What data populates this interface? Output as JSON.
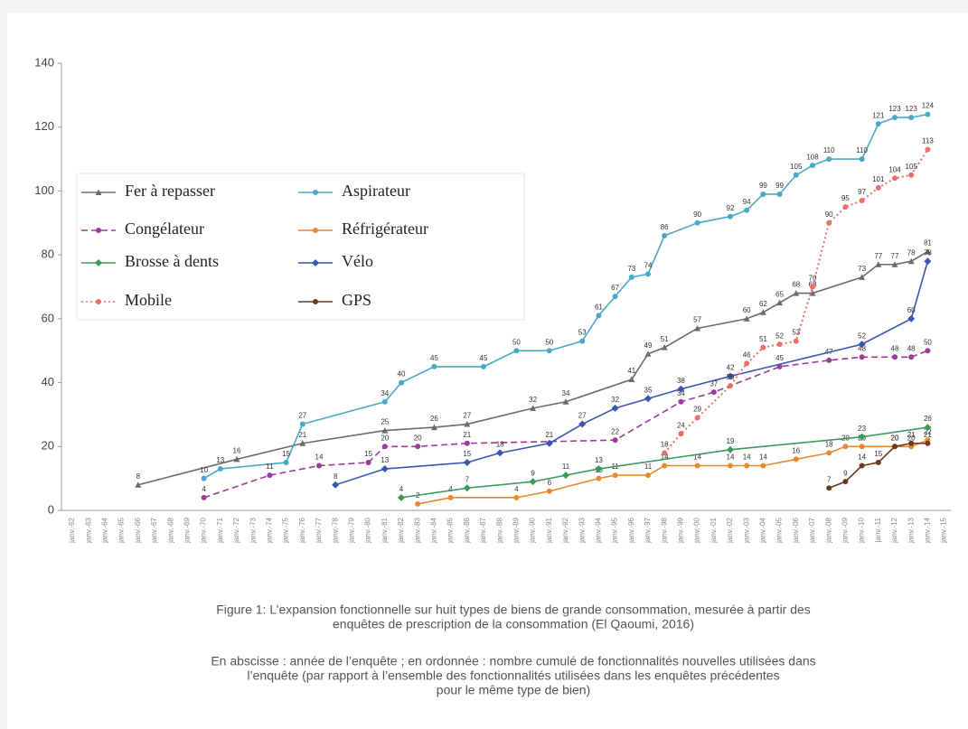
{
  "chart_data": {
    "type": "line",
    "categories": [
      "janv.-62",
      "janv.-63",
      "janv.-64",
      "janv.-65",
      "janv.-66",
      "janv.-67",
      "janv.-68",
      "janv.-69",
      "janv.-70",
      "janv.-71",
      "janv.-72",
      "janv.-73",
      "janv.-74",
      "janv.-75",
      "janv.-76",
      "janv.-77",
      "janv.-78",
      "janv.-79",
      "janv.-80",
      "janv.-81",
      "janv.-82",
      "janv.-83",
      "janv.-84",
      "janv.-85",
      "janv.-86",
      "janv.-87",
      "janv.-88",
      "janv.-89",
      "janv.-90",
      "janv.-91",
      "janv.-92",
      "janv.-93",
      "janv.-94",
      "janv.-95",
      "janv.-96",
      "janv.-97",
      "janv.-98",
      "janv.-99",
      "janv.-00",
      "janv.-01",
      "janv.-02",
      "janv.-03",
      "janv.-04",
      "janv.-05",
      "janv.-06",
      "janv.-07",
      "janv.-08",
      "janv.-09",
      "janv.-10",
      "janv.-11",
      "janv.-12",
      "janv.-13",
      "janv.-14",
      "janv.-15"
    ],
    "ylim": [
      0,
      140
    ],
    "yticks": [
      0,
      20,
      40,
      60,
      80,
      100,
      120,
      140
    ],
    "series": [
      {
        "name": "Fer à repasser",
        "color": "#6b6b6b",
        "marker": "triangle",
        "line_style": "solid",
        "x": [
          "janv.-66",
          "janv.-72",
          "janv.-76",
          "janv.-81",
          "janv.-84",
          "janv.-86",
          "janv.-90",
          "janv.-92",
          "janv.-96",
          "janv.-97",
          "janv.-98",
          "janv.-00",
          "janv.-03",
          "janv.-04",
          "janv.-05",
          "janv.-06",
          "janv.-07",
          "janv.-10",
          "janv.-11",
          "janv.-12",
          "janv.-13",
          "janv.-14"
        ],
        "values": [
          8,
          16,
          21,
          25,
          26,
          27,
          32,
          34,
          41,
          49,
          51,
          57,
          60,
          62,
          65,
          68,
          68,
          73,
          77,
          77,
          78,
          81
        ]
      },
      {
        "name": "Aspirateur",
        "color": "#4aa8c8",
        "marker": "circle",
        "line_style": "solid",
        "x": [
          "janv.-70",
          "janv.-71",
          "janv.-75",
          "janv.-76",
          "janv.-81",
          "janv.-82",
          "janv.-84",
          "janv.-87",
          "janv.-89",
          "janv.-91",
          "janv.-93",
          "janv.-94",
          "janv.-95",
          "janv.-96",
          "janv.-97",
          "janv.-98",
          "janv.-00",
          "janv.-02",
          "janv.-03",
          "janv.-04",
          "janv.-05",
          "janv.-06",
          "janv.-07",
          "janv.-08",
          "janv.-10",
          "janv.-11",
          "janv.-12",
          "janv.-13",
          "janv.-14"
        ],
        "values": [
          10,
          13,
          15,
          27,
          34,
          40,
          45,
          45,
          50,
          50,
          53,
          61,
          67,
          73,
          74,
          86,
          90,
          92,
          94,
          99,
          99,
          105,
          108,
          110,
          110,
          121,
          123,
          123,
          124
        ]
      },
      {
        "name": "Congélateur",
        "color": "#9b3c9b",
        "marker": "circle",
        "line_style": "dashed",
        "x": [
          "janv.-70",
          "janv.-74",
          "janv.-77",
          "janv.-80",
          "janv.-81",
          "janv.-83",
          "janv.-86",
          "janv.-95",
          "janv.-99",
          "janv.-01",
          "janv.-05",
          "janv.-08",
          "janv.-10",
          "janv.-12",
          "janv.-13",
          "janv.-14"
        ],
        "values": [
          4,
          11,
          14,
          15,
          20,
          20,
          21,
          22,
          34,
          37,
          45,
          47,
          48,
          48,
          48,
          50
        ]
      },
      {
        "name": "Réfrigérateur",
        "color": "#e8892e",
        "marker": "circle",
        "line_style": "solid",
        "x": [
          "janv.-83",
          "janv.-85",
          "janv.-89",
          "janv.-91",
          "janv.-94",
          "janv.-95",
          "janv.-97",
          "janv.-98",
          "janv.-00",
          "janv.-02",
          "janv.-03",
          "janv.-04",
          "janv.-06",
          "janv.-08",
          "janv.-09",
          "janv.-10",
          "janv.-12",
          "janv.-13",
          "janv.-14"
        ],
        "values": [
          2,
          4,
          4,
          6,
          10,
          11,
          11,
          14,
          14,
          14,
          14,
          14,
          16,
          18,
          20,
          20,
          20,
          20,
          22
        ]
      },
      {
        "name": "Brosse à dents",
        "color": "#3a9a5a",
        "marker": "diamond",
        "line_style": "solid",
        "x": [
          "janv.-82",
          "janv.-86",
          "janv.-90",
          "janv.-92",
          "janv.-94",
          "janv.-02",
          "janv.-10",
          "janv.-14"
        ],
        "values": [
          4,
          7,
          9,
          11,
          13,
          19,
          23,
          26
        ]
      },
      {
        "name": "Vélo",
        "color": "#3a55b0",
        "marker": "diamond",
        "line_style": "solid",
        "x": [
          "janv.-78",
          "janv.-81",
          "janv.-86",
          "janv.-88",
          "janv.-91",
          "janv.-93",
          "janv.-95",
          "janv.-97",
          "janv.-99",
          "janv.-02",
          "janv.-10",
          "janv.-13",
          "janv.-14"
        ],
        "values": [
          8,
          13,
          15,
          18,
          21,
          27,
          32,
          35,
          38,
          42,
          52,
          60,
          78
        ]
      },
      {
        "name": "Mobile",
        "color": "#e8706a",
        "marker": "circle",
        "line_style": "dotted",
        "x": [
          "janv.-98",
          "janv.-99",
          "janv.-00",
          "janv.-02",
          "janv.-03",
          "janv.-04",
          "janv.-05",
          "janv.-06",
          "janv.-07",
          "janv.-08",
          "janv.-09",
          "janv.-10",
          "janv.-11",
          "janv.-12",
          "janv.-13",
          "janv.-14"
        ],
        "values": [
          18,
          24,
          29,
          39,
          46,
          51,
          52,
          53,
          70,
          90,
          95,
          97,
          101,
          104,
          105,
          113
        ]
      },
      {
        "name": "GPS",
        "color": "#6b3a1e",
        "marker": "circle",
        "line_style": "solid",
        "x": [
          "janv.-08",
          "janv.-09",
          "janv.-10",
          "janv.-11",
          "janv.-12",
          "janv.-13",
          "janv.-14"
        ],
        "values": [
          7,
          9,
          14,
          15,
          20,
          21,
          21
        ]
      }
    ],
    "caption": [
      "Figure 1: L’expansion fonctionnelle sur huit types de biens de grande consommation, mesurée à partir des",
      "enquêtes de prescription de la consommation (El Qaoumi, 2016)"
    ],
    "note": [
      "En abscisse : année de l’enquête ; en ordonnée : nombre cumulé de fonctionnalités nouvelles utilisées dans",
      "l’enquête (par rapport à l’ensemble des fonctionnalités utilisées dans les enquêtes précédentes",
      "pour le même type de bien)"
    ]
  }
}
